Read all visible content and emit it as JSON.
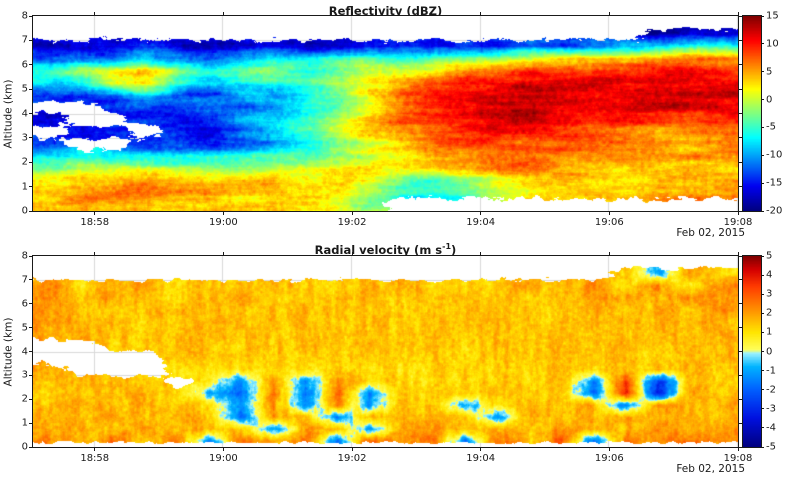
{
  "style": {
    "background": "#ffffff",
    "axis_color": "#1a1a1a",
    "grid_color": "#d9d9d9",
    "text_color": "#1a1a1a"
  },
  "figure": {
    "ylabel": "Altitude (km)",
    "date_label": "Feb 02, 2015"
  },
  "chart_data": [
    {
      "type": "heatmap",
      "title": "Reflectivity (dBZ)",
      "title_pre": "Reflectivity (dBZ)",
      "title_sup": "",
      "title_post": "",
      "ylabel": "Altitude (km)",
      "date_annotation": "Feb 02, 2015",
      "grid_on": true,
      "x_range_minutes_after_1800": [
        57.04,
        68
      ],
      "x_tick_minutes": [
        58,
        60,
        62,
        64,
        66,
        68
      ],
      "x_tick_labels": [
        "18:58",
        "19:00",
        "19:02",
        "19:04",
        "19:06",
        "19:08"
      ],
      "y_range_km": [
        0,
        8
      ],
      "y_ticks_km": [
        0,
        1,
        2,
        3,
        4,
        5,
        6,
        7,
        8
      ],
      "colorbar": {
        "min": -20,
        "max": 15,
        "ticks": [
          15,
          10,
          5,
          0,
          -5,
          -10,
          -15,
          -20
        ],
        "colormap_stops": [
          [
            0,
            "#000080"
          ],
          [
            0.125,
            "#0000F0"
          ],
          [
            0.375,
            "#00FFFF"
          ],
          [
            0.625,
            "#FFFF00"
          ],
          [
            0.875,
            "#FF0000"
          ],
          [
            1,
            "#800000"
          ]
        ]
      },
      "values_grid": {
        "description": "coarse dBZ field; rows top(8km) to bottom(0km) in 0.5km steps, cols 18:57 to 19:08 in 30s steps, null = no echo (white)",
        "rows": 16,
        "cols": 22,
        "data": [
          [
            null,
            null,
            null,
            null,
            null,
            null,
            null,
            null,
            null,
            null,
            null,
            null,
            null,
            null,
            null,
            null,
            null,
            null,
            null,
            null,
            null,
            null
          ],
          [
            null,
            null,
            null,
            null,
            null,
            null,
            null,
            null,
            null,
            null,
            null,
            null,
            null,
            null,
            null,
            null,
            null,
            null,
            null,
            -18,
            -17,
            -18
          ],
          [
            -17,
            -16,
            -17,
            -15,
            -16,
            -17,
            -16,
            -15,
            -16,
            -17,
            -15,
            -14,
            -15,
            -13,
            -14,
            -12,
            -13,
            -11,
            -10,
            -8,
            -6,
            -5
          ],
          [
            -12,
            -10,
            -12,
            -8,
            -10,
            -12,
            -9,
            -7,
            -8,
            -6,
            -5,
            -6,
            -4,
            -3,
            -2,
            0,
            2,
            3,
            4,
            5,
            6,
            5
          ],
          [
            -5,
            -2,
            1,
            3,
            -2,
            -6,
            -4,
            -2,
            -5,
            -3,
            0,
            2,
            3,
            5,
            6,
            8,
            9,
            10,
            9,
            10,
            11,
            9
          ],
          [
            -8,
            -6,
            2,
            4,
            -4,
            -8,
            -6,
            -5,
            -3,
            0,
            3,
            5,
            8,
            10,
            11,
            12,
            12,
            12,
            11,
            12,
            12,
            11
          ],
          [
            -14,
            -13,
            -12,
            -8,
            -12,
            -14,
            -10,
            -12,
            -8,
            -4,
            2,
            6,
            9,
            11,
            12,
            13,
            13,
            12,
            12,
            13,
            12,
            12
          ],
          [
            null,
            null,
            -15,
            -13,
            -14,
            -12,
            -13,
            -10,
            -6,
            -2,
            3,
            7,
            10,
            11,
            12,
            13,
            12,
            12,
            11,
            12,
            12,
            11
          ],
          [
            -16,
            null,
            null,
            -14,
            -15,
            -13,
            -10,
            -8,
            -4,
            0,
            4,
            7,
            9,
            10,
            11,
            12,
            11,
            10,
            10,
            9,
            8,
            9
          ],
          [
            null,
            -15,
            -14,
            null,
            -13,
            -15,
            -12,
            -9,
            -5,
            -1,
            3,
            6,
            8,
            9,
            10,
            10,
            9,
            8,
            7,
            5,
            6,
            7
          ],
          [
            -14,
            null,
            null,
            -15,
            -14,
            -16,
            -13,
            -10,
            -6,
            -2,
            1,
            4,
            7,
            8,
            8,
            8,
            7,
            6,
            5,
            4,
            3,
            5
          ],
          [
            -6,
            -5,
            -7,
            -6,
            -8,
            -7,
            -6,
            -5,
            -4,
            -2,
            0,
            2,
            5,
            6,
            7,
            7,
            6,
            7,
            7,
            6,
            5,
            6
          ],
          [
            -2,
            0,
            1,
            0,
            -1,
            -2,
            -1,
            0,
            0,
            1,
            2,
            3,
            4,
            5,
            6,
            6,
            5,
            4,
            3,
            2,
            4,
            3
          ],
          [
            3,
            4,
            4,
            5,
            4,
            3,
            3,
            4,
            3,
            3,
            1,
            -2,
            -4,
            -2,
            1,
            3,
            4,
            3,
            2,
            4,
            3,
            4
          ],
          [
            5,
            6,
            6,
            6,
            5,
            5,
            4,
            4,
            3,
            2,
            -2,
            -6,
            -7,
            -5,
            0,
            3,
            4,
            5,
            3,
            5,
            6,
            5
          ],
          [
            4,
            5,
            5,
            5,
            4,
            4,
            3,
            3,
            2,
            1,
            -2,
            null,
            null,
            null,
            null,
            null,
            null,
            null,
            null,
            null,
            null,
            null
          ]
        ]
      },
      "texture": {
        "seed": 11,
        "streak_scale": [
          55,
          7
        ],
        "streak_amp": 6,
        "speckle_scale": 3.5,
        "speckle_amp": 4,
        "cov_scale": [
          9,
          4
        ],
        "cov_amp": 0.9,
        "edge_fade_bottom": false
      }
    },
    {
      "type": "heatmap",
      "title": "Radial velocity (m s-1)",
      "title_pre": "Radial velocity (m s",
      "title_sup": "-1",
      "title_post": ")",
      "ylabel": "Altitude (km)",
      "date_annotation": "Feb 02, 2015",
      "grid_on": true,
      "x_range_minutes_after_1800": [
        57.04,
        68
      ],
      "x_tick_minutes": [
        58,
        60,
        62,
        64,
        66,
        68
      ],
      "x_tick_labels": [
        "18:58",
        "19:00",
        "19:02",
        "19:04",
        "19:06",
        "19:08"
      ],
      "y_range_km": [
        0,
        8
      ],
      "y_ticks_km": [
        0,
        1,
        2,
        3,
        4,
        5,
        6,
        7,
        8
      ],
      "colorbar": {
        "min": -5,
        "max": 5,
        "ticks": [
          5,
          4,
          3,
          2,
          1,
          0,
          -1,
          -2,
          -3,
          -4,
          -5
        ],
        "colormap_stops": [
          [
            0,
            "#000080"
          ],
          [
            0.15,
            "#0010E0"
          ],
          [
            0.3,
            "#0060FF"
          ],
          [
            0.42,
            "#00B4FF"
          ],
          [
            0.49,
            "#9CF2FF"
          ],
          [
            0.51,
            "#FFFF5A"
          ],
          [
            0.6,
            "#FFE600"
          ],
          [
            0.72,
            "#FF9000"
          ],
          [
            0.84,
            "#FF3C00"
          ],
          [
            0.93,
            "#D40000"
          ],
          [
            1,
            "#800000"
          ]
        ]
      },
      "values_grid": {
        "description": "coarse radial velocity field (m/s); rows top(8km) to bottom(0km) in 0.5km steps, cols 18:57 to 19:08 in 30s steps, null = no data (white)",
        "rows": 16,
        "cols": 22,
        "data": [
          [
            null,
            null,
            null,
            null,
            null,
            null,
            null,
            null,
            null,
            null,
            null,
            null,
            null,
            null,
            null,
            null,
            null,
            null,
            null,
            null,
            null,
            null
          ],
          [
            null,
            null,
            null,
            null,
            null,
            null,
            null,
            null,
            null,
            null,
            null,
            null,
            null,
            null,
            null,
            null,
            null,
            null,
            1.5,
            -1,
            2,
            1
          ],
          [
            2.2,
            1.3,
            1.6,
            1.9,
            1.2,
            1.5,
            1.3,
            1.7,
            1.4,
            1.2,
            1.6,
            1.8,
            1.4,
            1.2,
            1.5,
            1.8,
            1.5,
            2.1,
            1.1,
            2.4,
            0.5,
            2.2
          ],
          [
            2.2,
            1.6,
            1.9,
            1.4,
            1.2,
            1.6,
            1.8,
            1.5,
            1.3,
            1.5,
            1.7,
            1.4,
            1.5,
            1.7,
            1.5,
            1.3,
            1.6,
            1.9,
            2.1,
            1.4,
            2.4,
            1.9
          ],
          [
            2.0,
            1.6,
            1.2,
            1.5,
            1.8,
            1.5,
            1.2,
            1.4,
            1.7,
            1.5,
            1.3,
            1.5,
            1.4,
            1.6,
            1.5,
            1.4,
            1.5,
            1.7,
            1.3,
            1.9,
            1.5,
            2.1
          ],
          [
            2.1,
            1.8,
            1.5,
            1.2,
            1.5,
            1.7,
            1.4,
            1.5,
            1.6,
            1.3,
            1.5,
            1.4,
            1.5,
            1.6,
            1.5,
            1.4,
            1.5,
            1.5,
            1.7,
            1.5,
            1.9,
            1.6
          ],
          [
            1.9,
            1.8,
            1.5,
            1.3,
            1.5,
            1.6,
            1.5,
            1.4,
            1.5,
            1.5,
            1.4,
            1.5,
            1.5,
            1.4,
            1.5,
            1.5,
            1.6,
            1.5,
            1.4,
            1.7,
            1.5,
            1.8
          ],
          [
            null,
            null,
            1.5,
            1.4,
            1.5,
            1.5,
            1.4,
            1.5,
            1.5,
            1.4,
            1.5,
            1.5,
            1.5,
            1.4,
            1.5,
            1.5,
            1.5,
            1.6,
            1.5,
            1.5,
            1.6,
            1.5
          ],
          [
            null,
            null,
            null,
            null,
            1.4,
            1.5,
            1.5,
            1.3,
            1.2,
            1.3,
            1.4,
            1.3,
            1.2,
            1.3,
            1.4,
            1.5,
            1.4,
            1.5,
            1.5,
            1.4,
            1.5,
            1.6
          ],
          [
            1.8,
            null,
            null,
            null,
            0.9,
            1.0,
            1.2,
            1.0,
            1.1,
            1.2,
            1.1,
            1.0,
            1.2,
            1.3,
            1.2,
            1.3,
            1.4,
            1.2,
            1.5,
            1.4,
            1.5,
            1.5
          ],
          [
            1.5,
            1.8,
            1.5,
            1.2,
            null,
            1.0,
            -1.2,
            2,
            -1.5,
            2.2,
            1.1,
            1.2,
            1.1,
            1.2,
            1.3,
            1.2,
            1.5,
            -1.5,
            3.5,
            -3,
            1.5,
            1.4
          ],
          [
            1.2,
            1.5,
            1.8,
            1.5,
            1.2,
            -0.8,
            -2,
            2.5,
            -1.8,
            2.8,
            -1.5,
            1.4,
            1.2,
            1.3,
            1.5,
            1.2,
            1.4,
            -2,
            4,
            -3.5,
            1.8,
            1.5
          ],
          [
            1.5,
            2,
            1.5,
            1.8,
            1.5,
            1.2,
            -1.5,
            2.2,
            -1.5,
            2.5,
            -1.2,
            1.5,
            1.4,
            -1,
            1.2,
            1.5,
            1.5,
            1.8,
            -1.5,
            2,
            1.5,
            1.8
          ],
          [
            1.8,
            1.5,
            2,
            1.5,
            1.8,
            1.5,
            -2,
            2,
            1.5,
            -1.5,
            1.8,
            1.5,
            1.6,
            1.4,
            -1.2,
            1.8,
            1.5,
            1.5,
            2,
            1.5,
            1.8,
            1.5
          ],
          [
            2,
            1.8,
            1.5,
            2,
            1.5,
            1.8,
            1.5,
            -1.5,
            2,
            1.5,
            -1.2,
            1.8,
            2,
            1.5,
            1.8,
            1.5,
            2,
            1.8,
            1.5,
            2,
            1.8,
            2
          ],
          [
            2.5,
            1.5,
            2.8,
            1.2,
            2.5,
            -1.5,
            3,
            1.5,
            2.8,
            -1.8,
            3,
            1.8,
            2.5,
            -1.5,
            2.8,
            1.5,
            3,
            -2,
            2.5,
            1.8,
            3,
            2.2
          ]
        ]
      },
      "texture": {
        "seed": 21,
        "streak_scale": [
          6,
          30
        ],
        "streak_amp": 1.3,
        "speckle_scale": 3,
        "speckle_amp": 1.2,
        "cov_scale": [
          9,
          5
        ],
        "cov_amp": 0.8,
        "edge_fade_bottom": true
      }
    }
  ]
}
